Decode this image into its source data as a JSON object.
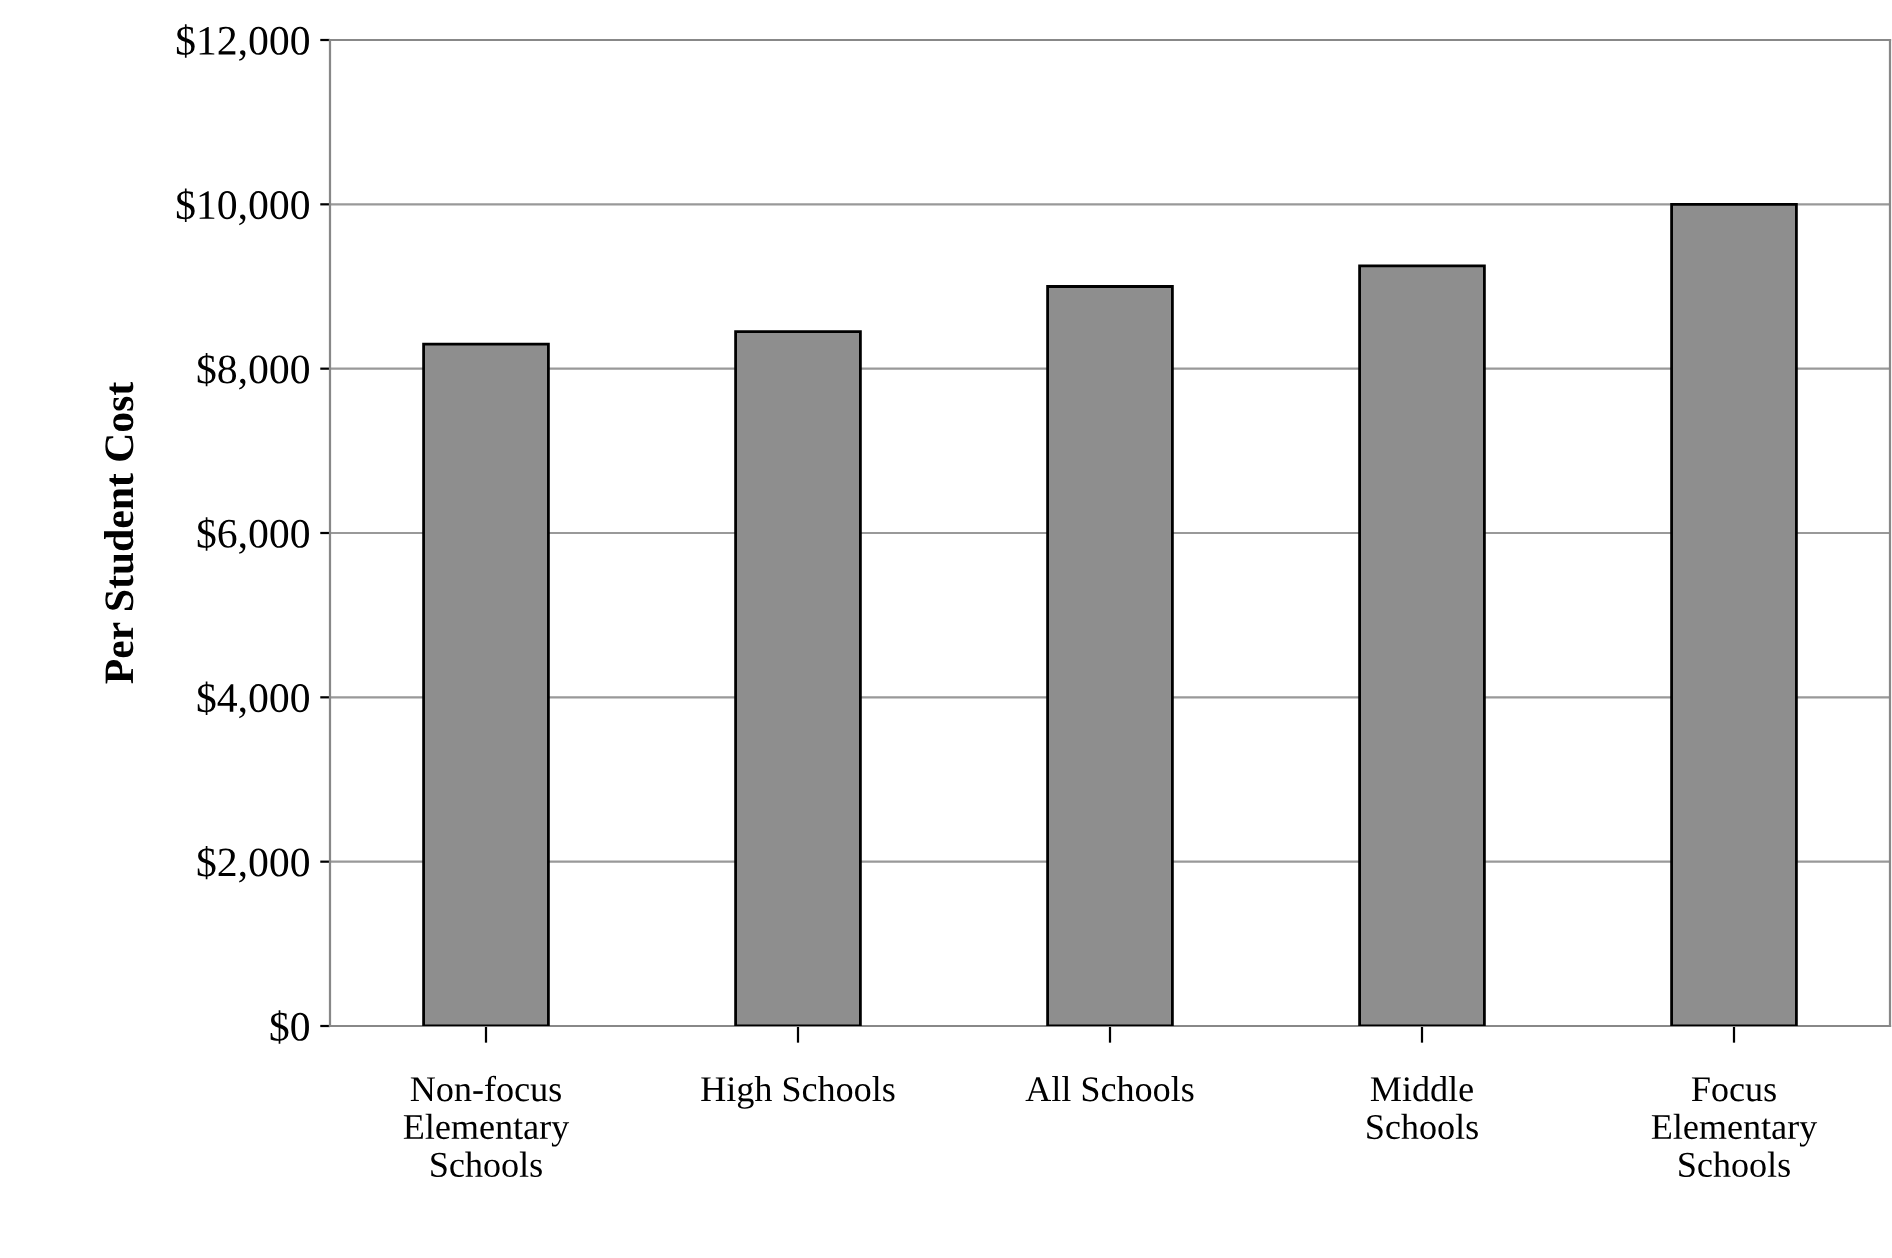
{
  "chart_data": {
    "type": "bar",
    "ylabel": "Per Student Cost",
    "categories": [
      "Non-focus\nElementary\nSchools",
      "High Schools",
      "All Schools",
      "Middle\nSchools",
      "Focus\nElementary\nSchools"
    ],
    "values": [
      8300,
      8450,
      9000,
      9250,
      10000
    ],
    "color": "#8e8e8e",
    "ylim": [
      0,
      12000
    ],
    "yticks": [
      {
        "value": 0,
        "label": "$0"
      },
      {
        "value": 2000,
        "label": "$2,000"
      },
      {
        "value": 4000,
        "label": "$4,000"
      },
      {
        "value": 6000,
        "label": "$6,000"
      },
      {
        "value": 8000,
        "label": "$8,000"
      },
      {
        "value": 10000,
        "label": "$10,000"
      },
      {
        "value": 12000,
        "label": "$12,000"
      }
    ],
    "grid": "y"
  }
}
